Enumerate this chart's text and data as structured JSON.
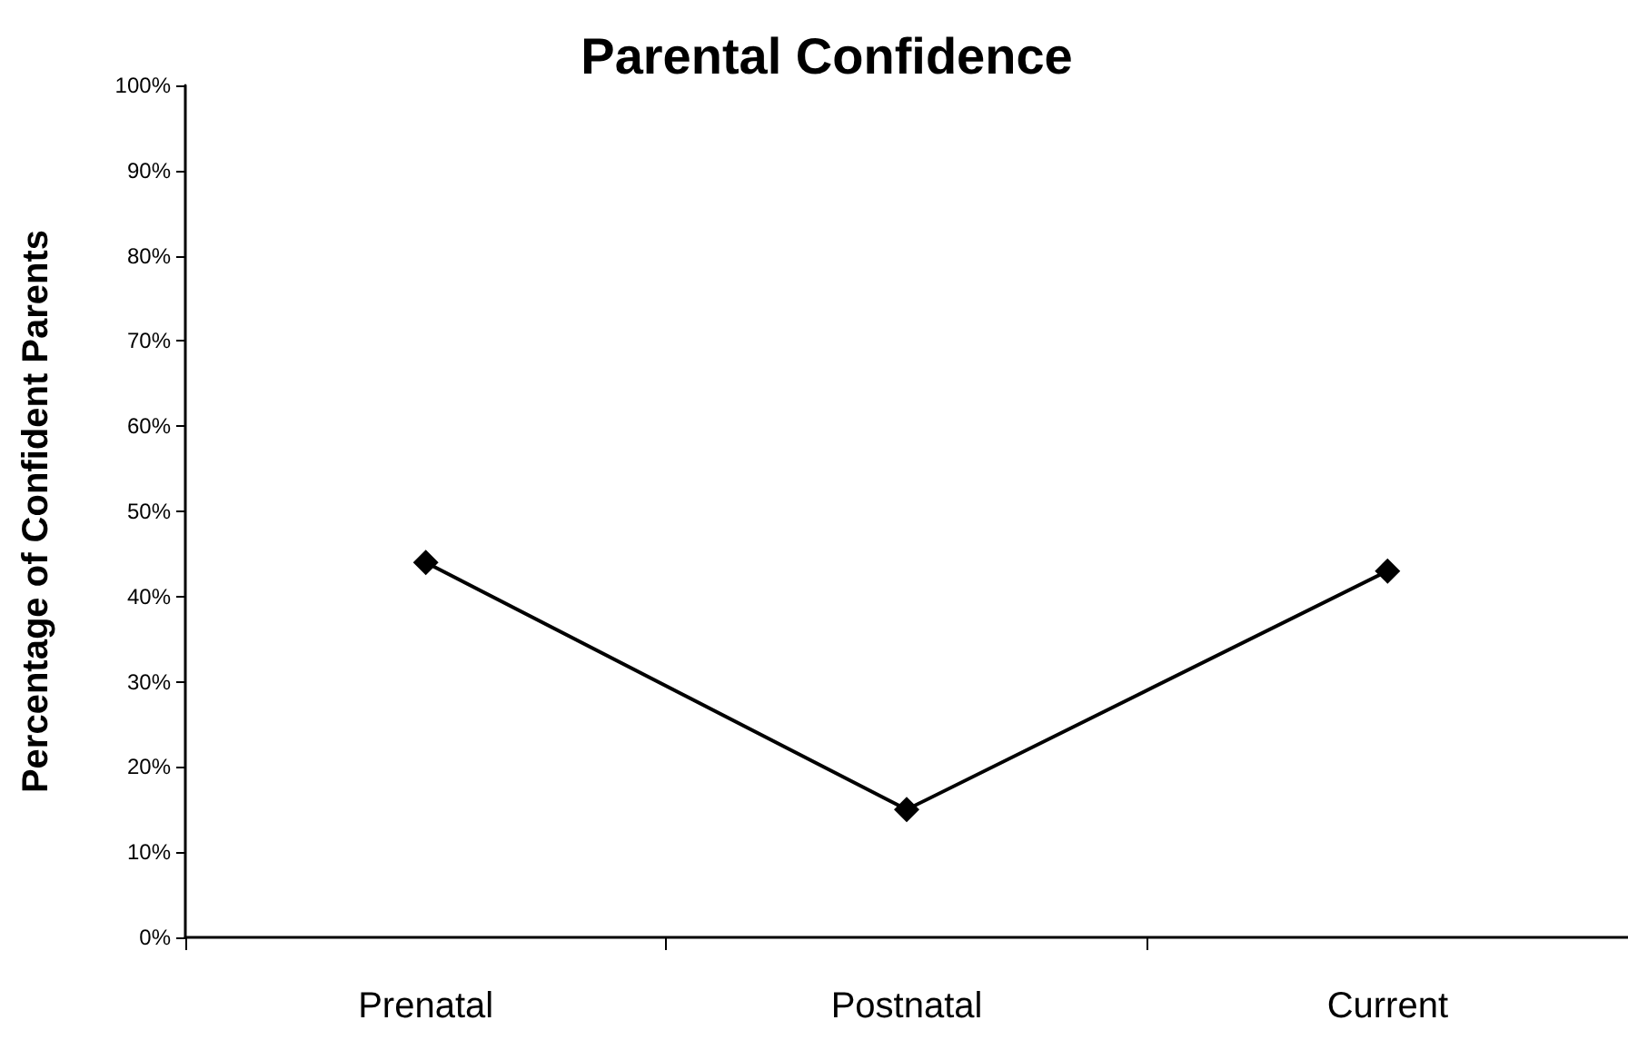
{
  "chart_data": {
    "type": "line",
    "title": "Parental Confidence",
    "ylabel": "Percentage of Confident Parents",
    "categories": [
      "Prenatal",
      "Postnatal",
      "Current"
    ],
    "series": [
      {
        "color": "#000000",
        "values": [
          44,
          15,
          43
        ]
      }
    ],
    "ylim": [
      0,
      100
    ],
    "yticks": [
      {
        "value": 0,
        "label": "0%"
      },
      {
        "value": 10,
        "label": "10%"
      },
      {
        "value": 20,
        "label": "20%"
      },
      {
        "value": 30,
        "label": "30%"
      },
      {
        "value": 40,
        "label": "40%"
      },
      {
        "value": 50,
        "label": "50%"
      },
      {
        "value": 60,
        "label": "60%"
      },
      {
        "value": 70,
        "label": "70%"
      },
      {
        "value": 80,
        "label": "80%"
      },
      {
        "value": 90,
        "label": "90%"
      },
      {
        "value": 100,
        "label": "100%"
      }
    ],
    "grid": false,
    "marker": "diamond",
    "line_style": "solid"
  }
}
